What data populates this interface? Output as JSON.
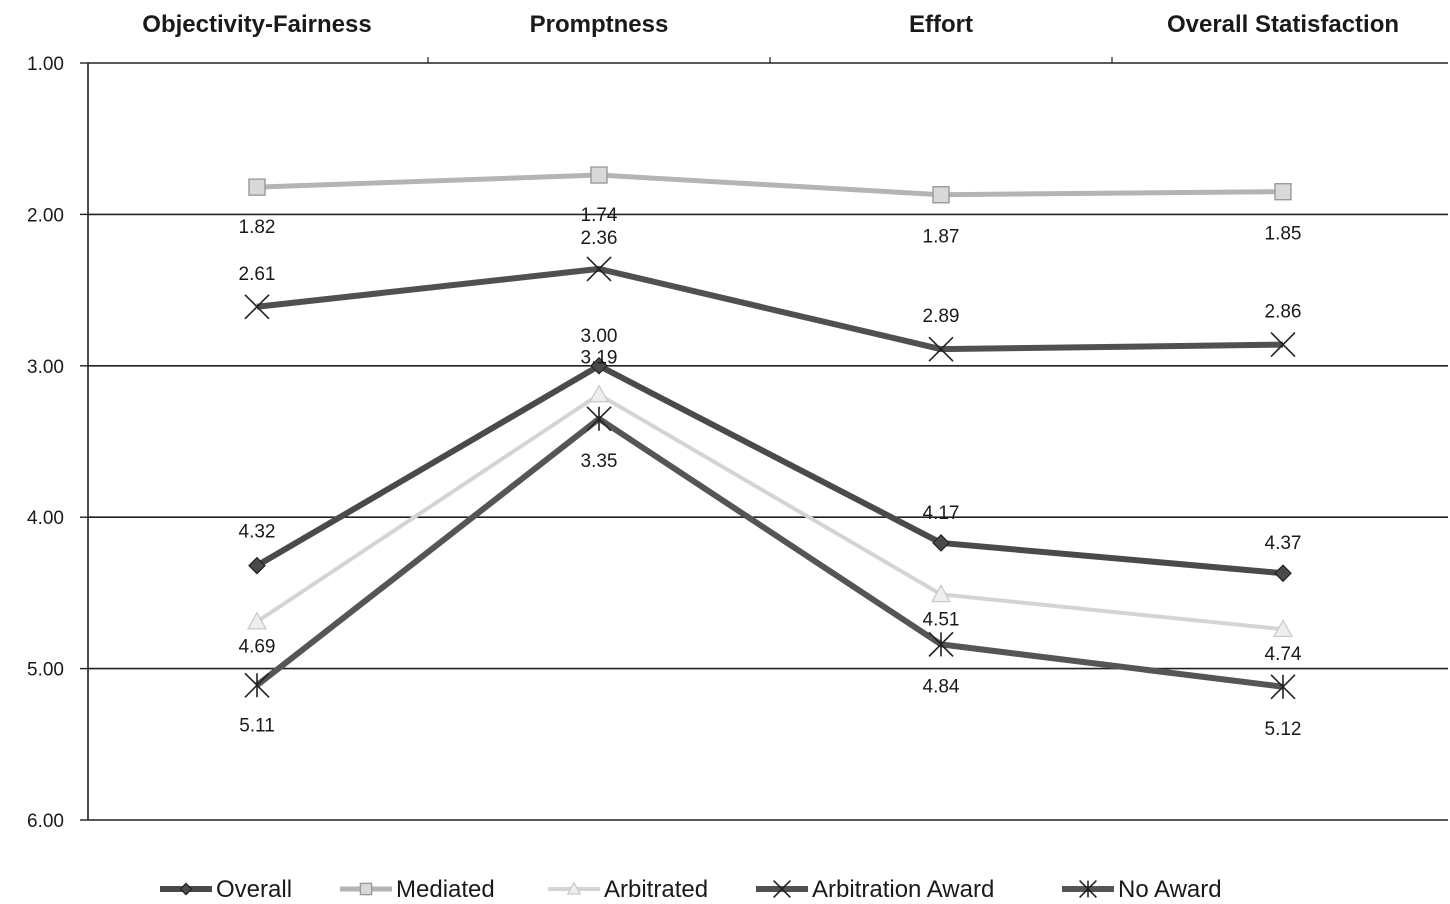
{
  "chart_data": {
    "type": "line",
    "title": "",
    "xlabel": "",
    "ylabel": "",
    "categories": [
      "Objectivity-Fairness",
      "Promptness",
      "Effort",
      "Overall Statisfaction"
    ],
    "y_axis": {
      "min": 1.0,
      "max": 6.0,
      "reversed": true,
      "tick_labels": [
        "1.00",
        "2.00",
        "3.00",
        "4.00",
        "5.00",
        "6.00"
      ]
    },
    "grid": true,
    "legend_position": "bottom",
    "series": [
      {
        "name": "Overall",
        "values": [
          4.32,
          3.0,
          4.17,
          4.37
        ],
        "labels": [
          "4.32",
          "3.00",
          "4.17",
          "4.37"
        ],
        "color": "#4a4a4a",
        "marker": "diamond"
      },
      {
        "name": "Mediated",
        "values": [
          1.82,
          1.74,
          1.87,
          1.85
        ],
        "labels": [
          "1.82",
          "1.74",
          "1.87",
          "1.85"
        ],
        "color": "#b4b4b4",
        "marker": "square"
      },
      {
        "name": "Arbitrated",
        "values": [
          4.69,
          3.19,
          4.51,
          4.74
        ],
        "labels": [
          "4.69",
          "3.19",
          "4.51",
          "4.74"
        ],
        "color": "#d4d4d4",
        "marker": "triangle"
      },
      {
        "name": "Arbitration Award",
        "values": [
          2.61,
          2.36,
          2.89,
          2.86
        ],
        "labels": [
          "2.61",
          "2.36",
          "2.89",
          "2.86"
        ],
        "color": "#505050",
        "marker": "x"
      },
      {
        "name": "No Award",
        "values": [
          5.11,
          3.35,
          4.84,
          5.12
        ],
        "labels": [
          "5.11",
          "3.35",
          "4.84",
          "5.12"
        ],
        "color": "#555555",
        "marker": "star"
      }
    ]
  }
}
